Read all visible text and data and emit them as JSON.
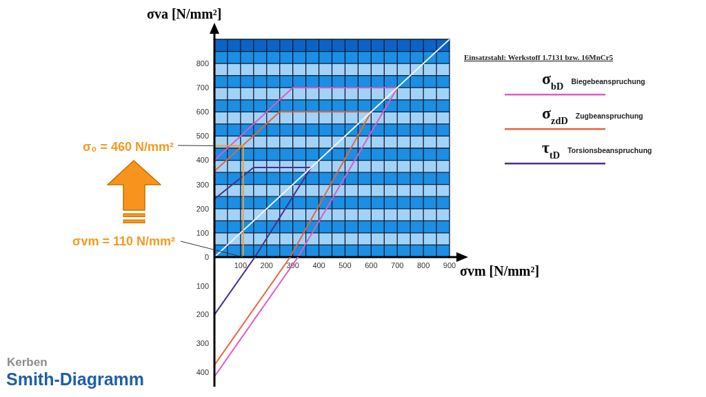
{
  "chart_data": [
    {
      "type": "line",
      "title": "Kerben\nSmith-Diagramm",
      "xlabel": "σvm [N/mm²]",
      "ylabel": "σva [N/mm²]",
      "legend_title": "Einsatzstahl: Werkstoff 1.7131 bzw. 16MnCr5",
      "annotations": [
        {
          "text": "σ₀ = 460 N/mm²",
          "x": 0,
          "y": 460
        },
        {
          "text": "σvm = 110 N/mm²",
          "x": 110,
          "y": 0
        }
      ],
      "series": [
        {
          "name": "σ$_{bD}$ Biegebeanspruchung",
          "color": "#e05ac8",
          "x": [
            0,
            300,
            700,
            320
          ],
          "values": [
            400,
            700,
            700,
            0
          ]
        },
        {
          "name": "σ$_{zdD}$ Zugbeanspruchung",
          "color": "#e8643c",
          "x": [
            0,
            250,
            600,
            290
          ],
          "values": [
            355,
            600,
            600,
            0
          ]
        },
        {
          "name": "τ$_{tD}$ Torsionsbeanspruchung",
          "color": "#4a2e8e",
          "x": [
            0,
            150,
            370,
            155
          ],
          "values": [
            240,
            370,
            370,
            0
          ]
        },
        {
          "color": "#eef6ff",
          "x": [
            0,
            900
          ],
          "values": [
            0,
            900
          ]
        },
        {
          "color": "#f0a030",
          "x": [
            0,
            110,
            110
          ],
          "values": [
            460,
            460,
            0
          ]
        }
      ],
      "xlim": [
        0,
        900
      ],
      "ylim": [
        0,
        900
      ],
      "xticks": [
        {
          "value": 0,
          "label": null
        },
        {
          "value": 50,
          "label": null
        },
        100,
        {
          "value": 150,
          "label": null
        },
        200,
        {
          "value": 250,
          "label": null
        },
        300,
        {
          "value": 350,
          "label": null
        },
        400,
        {
          "value": 450,
          "label": null
        },
        500,
        {
          "value": 550,
          "label": null
        },
        600,
        {
          "value": 650,
          "label": null
        },
        700,
        {
          "value": 750,
          "label": null
        },
        800,
        {
          "value": 850,
          "label": null
        },
        900
      ],
      "yticks": [
        0,
        {
          "value": 50,
          "label": null
        },
        100,
        {
          "value": 150,
          "label": null
        },
        200,
        {
          "value": 250,
          "label": null
        },
        300,
        {
          "value": 350,
          "label": null
        },
        400,
        {
          "value": 450,
          "label": null
        },
        500,
        {
          "value": 550,
          "label": null
        },
        600,
        {
          "value": 650,
          "label": null
        },
        700,
        {
          "value": 750,
          "label": null
        },
        800,
        {
          "value": 850,
          "label": null
        },
        {
          "value": 900,
          "label": null
        }
      ],
      "bands": [
        {
          "axis": "y",
          "from": 0,
          "to": 50,
          "color": "#1a8fe3"
        },
        {
          "axis": "y",
          "from": 50,
          "to": 100,
          "color": "#a3d2f7"
        },
        {
          "axis": "y",
          "from": 100,
          "to": 150,
          "color": "#1a8fe3"
        },
        {
          "axis": "y",
          "from": 150,
          "to": 200,
          "color": "#a3d2f7"
        },
        {
          "axis": "y",
          "from": 200,
          "to": 250,
          "color": "#1a8fe3"
        },
        {
          "axis": "y",
          "from": 250,
          "to": 300,
          "color": "#a3d2f7"
        },
        {
          "axis": "y",
          "from": 300,
          "to": 350,
          "color": "#1a8fe3"
        },
        {
          "axis": "y",
          "from": 350,
          "to": 400,
          "color": "#a3d2f7"
        },
        {
          "axis": "y",
          "from": 400,
          "to": 450,
          "color": "#1a8fe3"
        },
        {
          "axis": "y",
          "from": 450,
          "to": 500,
          "color": "#a3d2f7"
        },
        {
          "axis": "y",
          "from": 500,
          "to": 550,
          "color": "#1a8fe3"
        },
        {
          "axis": "y",
          "from": 550,
          "to": 600,
          "color": "#a3d2f7"
        },
        {
          "axis": "y",
          "from": 600,
          "to": 650,
          "color": "#1a8fe3"
        },
        {
          "axis": "y",
          "from": 650,
          "to": 700,
          "color": "#a3d2f7"
        },
        {
          "axis": "y",
          "from": 700,
          "to": 750,
          "color": "#1a8fe3"
        },
        {
          "axis": "y",
          "from": 750,
          "to": 800,
          "color": "#a3d2f7"
        },
        {
          "axis": "y",
          "from": 800,
          "to": 850,
          "color": "#1a8fe3"
        },
        {
          "axis": "y",
          "from": 850,
          "to": 900,
          "color": "#0b63c6"
        }
      ],
      "grid": true,
      "legend": "top right"
    },
    {
      "type": "line",
      "series": [
        {
          "color": "#e05ac8",
          "x": [
            320,
            0
          ],
          "values": [
            0,
            -415
          ]
        },
        {
          "color": "#e8643c",
          "x": [
            290,
            0
          ],
          "values": [
            0,
            -375
          ]
        },
        {
          "color": "#4a2e8e",
          "x": [
            155,
            0
          ],
          "values": [
            0,
            -200
          ]
        }
      ],
      "xlim": [
        0,
        900
      ],
      "ylim": [
        -450,
        0
      ],
      "yticks": [
        {
          "value": -400,
          "label": "400"
        },
        {
          "value": -300,
          "label": "300"
        },
        {
          "value": -200,
          "label": "200"
        },
        {
          "value": -100,
          "label": "100"
        }
      ],
      "tick_labels": "y"
    }
  ]
}
